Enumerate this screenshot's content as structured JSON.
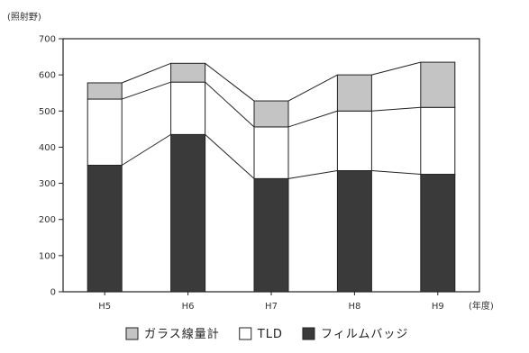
{
  "chart_data": {
    "type": "bar",
    "stacked": true,
    "categories": [
      "H5",
      "H6",
      "H7",
      "H8",
      "H9"
    ],
    "series": [
      {
        "name": "フィルムバッジ",
        "values": [
          350,
          435,
          313,
          335,
          325
        ],
        "color": "#3a3a3a"
      },
      {
        "name": "TLD",
        "values": [
          183,
          145,
          143,
          165,
          185
        ],
        "color": "#ffffff"
      },
      {
        "name": "ガラス線量計",
        "values": [
          45,
          52,
          72,
          100,
          125
        ],
        "color": "#c4c4c4"
      }
    ],
    "ylabel": "(照射野)",
    "xlabel": "(年度)",
    "ylim": [
      0,
      700
    ],
    "yticks": [
      0,
      100,
      200,
      300,
      400,
      500,
      600,
      700
    ],
    "grid": false,
    "legend": {
      "position": "bottom"
    }
  }
}
